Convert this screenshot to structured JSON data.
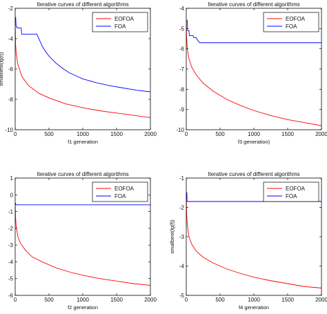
{
  "chart_data": [
    {
      "type": "line",
      "title": "Iterative curves of different algorithms",
      "xlabel": "f1 generation",
      "ylabel": "smallbest(lg(f))",
      "xlim": [
        0,
        2000
      ],
      "ylim": [
        -10,
        -2
      ],
      "xticks": [
        0,
        500,
        1000,
        1500,
        2000
      ],
      "yticks": [
        -10,
        -8,
        -6,
        -4,
        -2
      ],
      "legend": "top-right",
      "series": [
        {
          "name": "EOFOA",
          "color": "#ff0000",
          "x": [
            0,
            5,
            15,
            40,
            100,
            200,
            350,
            500,
            750,
            1000,
            1250,
            1500,
            1750,
            2000
          ],
          "y": [
            -2.6,
            -4.3,
            -5.0,
            -5.7,
            -6.5,
            -7.1,
            -7.6,
            -7.9,
            -8.3,
            -8.55,
            -8.75,
            -8.9,
            -9.05,
            -9.2
          ]
        },
        {
          "name": "FOA",
          "color": "#0000ff",
          "x": [
            0,
            8,
            12,
            20,
            30,
            90,
            95,
            320,
            360,
            400,
            450,
            500,
            600,
            700,
            800,
            900,
            1000,
            1200,
            1400,
            1600,
            1800,
            2000
          ],
          "y": [
            -2.6,
            -2.6,
            -3.1,
            -3.2,
            -3.3,
            -3.3,
            -3.7,
            -3.7,
            -4.1,
            -4.5,
            -4.85,
            -5.15,
            -5.6,
            -5.95,
            -6.25,
            -6.45,
            -6.65,
            -6.9,
            -7.1,
            -7.25,
            -7.4,
            -7.5
          ]
        }
      ]
    },
    {
      "type": "line",
      "title": "Iterative curves of different algorithms",
      "xlabel": "f3 generation)",
      "ylabel": "",
      "xlim": [
        0,
        2000
      ],
      "ylim": [
        -10,
        -4
      ],
      "xticks": [
        0,
        500,
        1000,
        1500,
        2000
      ],
      "yticks": [
        -10,
        -9,
        -8,
        -7,
        -6,
        -5,
        -4
      ],
      "legend": "top-right",
      "series": [
        {
          "name": "EOFOA",
          "color": "#ff0000",
          "x": [
            0,
            5,
            15,
            40,
            80,
            150,
            250,
            400,
            600,
            800,
            1000,
            1250,
            1500,
            1750,
            2000
          ],
          "y": [
            -4.6,
            -5.4,
            -6.0,
            -6.5,
            -6.9,
            -7.3,
            -7.7,
            -8.1,
            -8.5,
            -8.8,
            -9.05,
            -9.3,
            -9.5,
            -9.65,
            -9.8
          ]
        },
        {
          "name": "FOA",
          "color": "#0000ff",
          "x": [
            0,
            15,
            20,
            40,
            45,
            100,
            110,
            150,
            160,
            200,
            2000
          ],
          "y": [
            -4.6,
            -4.6,
            -5.1,
            -5.1,
            -5.35,
            -5.35,
            -5.45,
            -5.45,
            -5.55,
            -5.7,
            -5.7
          ]
        }
      ]
    },
    {
      "type": "line",
      "title": "Iterative curves of different algorithms",
      "xlabel": "f2 generation",
      "ylabel": "",
      "xlim": [
        0,
        2000
      ],
      "ylim": [
        -6,
        1
      ],
      "xticks": [
        0,
        500,
        1000,
        1500,
        2000
      ],
      "yticks": [
        -6,
        -5,
        -4,
        -3,
        -2,
        -1,
        0,
        1
      ],
      "legend": "top-right",
      "series": [
        {
          "name": "EOFOA",
          "color": "#ff0000",
          "x": [
            0,
            5,
            15,
            40,
            80,
            150,
            250,
            400,
            600,
            800,
            1000,
            1250,
            1500,
            1750,
            2000
          ],
          "y": [
            -0.5,
            -1.3,
            -1.9,
            -2.5,
            -2.9,
            -3.3,
            -3.7,
            -4.0,
            -4.35,
            -4.6,
            -4.8,
            -5.0,
            -5.15,
            -5.3,
            -5.4
          ]
        },
        {
          "name": "FOA",
          "color": "#0000ff",
          "x": [
            0,
            5,
            10,
            2000
          ],
          "y": [
            -0.5,
            -0.5,
            -0.6,
            -0.6
          ]
        }
      ]
    },
    {
      "type": "line",
      "title": "Iterative curves of different algorithms",
      "xlabel": "f4 generation",
      "ylabel": "smallbest(lg(f))",
      "xlim": [
        0,
        2000
      ],
      "ylim": [
        -5,
        -1
      ],
      "xticks": [
        0,
        500,
        1000,
        1500,
        2000
      ],
      "yticks": [
        -5,
        -4,
        -3,
        -2,
        -1
      ],
      "legend": "top-right",
      "series": [
        {
          "name": "EOFOA",
          "color": "#ff0000",
          "x": [
            0,
            5,
            15,
            40,
            80,
            150,
            250,
            400,
            600,
            800,
            1000,
            1250,
            1500,
            1750,
            2000
          ],
          "y": [
            -1.5,
            -2.2,
            -2.6,
            -3.0,
            -3.25,
            -3.5,
            -3.7,
            -3.9,
            -4.1,
            -4.25,
            -4.38,
            -4.5,
            -4.6,
            -4.7,
            -4.75
          ]
        },
        {
          "name": "FOA",
          "color": "#0000ff",
          "x": [
            0,
            8,
            12,
            2000
          ],
          "y": [
            -1.5,
            -1.5,
            -1.8,
            -1.8
          ]
        }
      ]
    }
  ]
}
